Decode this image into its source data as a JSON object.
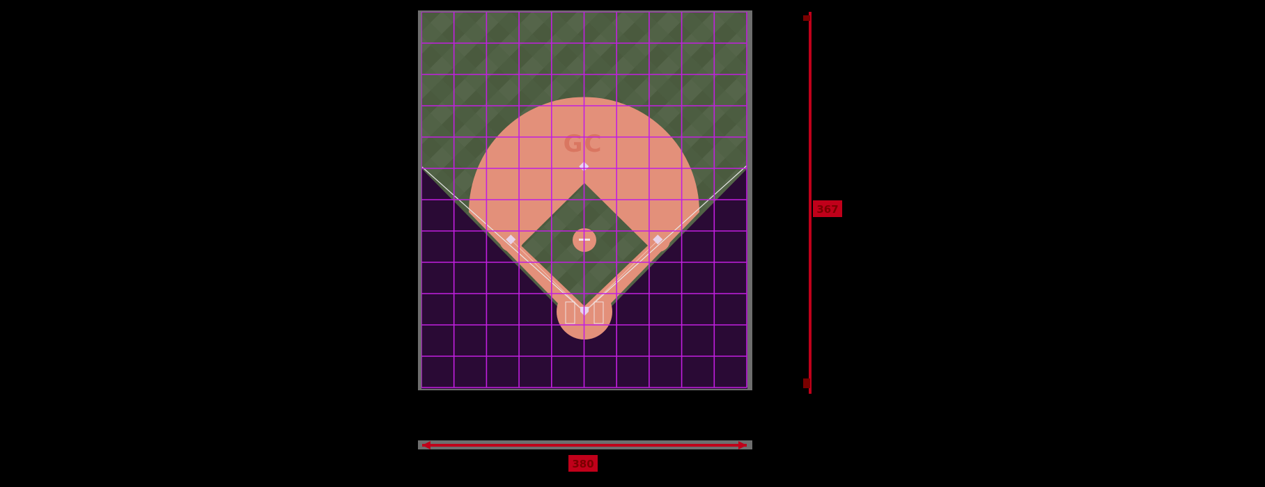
{
  "field_logo": {
    "text": "GC"
  },
  "dimensions": {
    "width_label": "380",
    "height_label": "367"
  },
  "grid": {
    "columns": 10,
    "rows": 12
  },
  "colors": {
    "background": "#000000",
    "outfield_grass": "#4a5a3e",
    "outfield_grass_alt": "#55654a",
    "infield_dirt": "#e3907a",
    "lower_area": "#2a0a35",
    "grid_lines": "#c21fe0",
    "foul_lines": "#e8e8e8",
    "logo": "#d9745f",
    "base": "#e8d4ec",
    "dimension_lines": "#c0001a",
    "dimension_label_bg": "#c0001a",
    "dimension_label_text": "#7a0000",
    "frame_gray": "#6e6e6e"
  }
}
